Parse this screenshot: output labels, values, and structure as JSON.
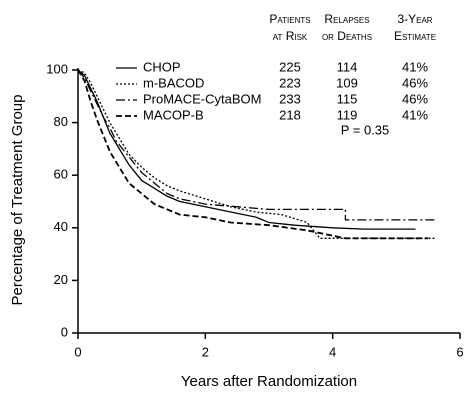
{
  "chart_data": {
    "type": "line",
    "step": true,
    "xlabel": "Years after Randomization",
    "ylabel": "Percentage of Treatment Group",
    "xlim": [
      0,
      6
    ],
    "xticks": [
      0,
      2,
      4,
      6
    ],
    "ylim": [
      0,
      100
    ],
    "yticks": [
      0,
      20,
      40,
      60,
      80,
      100
    ],
    "columns": [
      [
        "Patients",
        "at Risk"
      ],
      [
        "Relapses",
        "or Deaths"
      ],
      [
        "3-Year",
        "Estimate"
      ]
    ],
    "annotation": "P = 0.35",
    "series": [
      {
        "name": "CHOP",
        "color": "#000000",
        "dash": "solid",
        "at_risk": 225,
        "events": 114,
        "estimate": "41%",
        "x": [
          0,
          0.1,
          0.2,
          0.3,
          0.4,
          0.5,
          0.6,
          0.7,
          0.8,
          0.9,
          1.0,
          1.2,
          1.4,
          1.6,
          1.8,
          2.0,
          2.4,
          2.8,
          3.0,
          3.4,
          4.0,
          4.5,
          5.3
        ],
        "values": [
          100,
          98,
          93,
          88,
          82,
          76,
          72,
          68,
          64,
          61,
          58,
          55,
          52,
          50,
          49,
          48,
          46,
          44,
          42,
          41,
          40,
          39.5,
          39.5
        ]
      },
      {
        "name": "m-BACOD",
        "color": "#000000",
        "dash": "dotted",
        "at_risk": 223,
        "events": 109,
        "estimate": "46%",
        "x": [
          0,
          0.1,
          0.2,
          0.3,
          0.4,
          0.5,
          0.6,
          0.7,
          0.8,
          1.0,
          1.2,
          1.4,
          1.6,
          2.0,
          2.4,
          2.8,
          3.2,
          3.6,
          3.8,
          4.2,
          5.6
        ],
        "values": [
          100,
          99,
          95,
          90,
          85,
          80,
          76,
          72,
          68,
          63,
          59,
          56,
          54,
          51,
          48,
          46,
          45,
          42,
          36,
          36,
          36
        ]
      },
      {
        "name": "ProMACE-CytaBOM",
        "color": "#000000",
        "dash": "dashdot",
        "at_risk": 233,
        "events": 115,
        "estimate": "46%",
        "x": [
          0,
          0.1,
          0.2,
          0.3,
          0.4,
          0.5,
          0.6,
          0.8,
          1.0,
          1.2,
          1.4,
          1.6,
          2.0,
          2.5,
          3.0,
          4.2,
          4.2,
          5.6
        ],
        "values": [
          100,
          97,
          92,
          87,
          82,
          78,
          73,
          67,
          61,
          57,
          53,
          51,
          49,
          48,
          47,
          47,
          43,
          43
        ]
      },
      {
        "name": "MACOP-B",
        "color": "#000000",
        "dash": "dashed",
        "at_risk": 218,
        "events": 119,
        "estimate": "41%",
        "x": [
          0,
          0.1,
          0.2,
          0.3,
          0.4,
          0.5,
          0.6,
          0.7,
          0.8,
          1.0,
          1.2,
          1.4,
          1.6,
          2.0,
          2.4,
          3.0,
          3.6,
          3.8,
          4.2,
          5.5
        ],
        "values": [
          100,
          96,
          88,
          81,
          75,
          69,
          65,
          61,
          57,
          53,
          49,
          47,
          45,
          44,
          42,
          41,
          39,
          38,
          36,
          36
        ]
      }
    ]
  }
}
